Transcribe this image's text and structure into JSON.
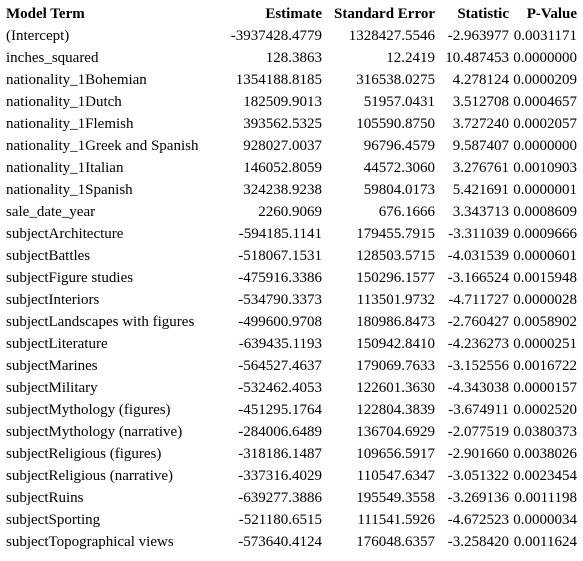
{
  "table": {
    "headers": {
      "term": "Model Term",
      "estimate": "Estimate",
      "std_error": "Standard Error",
      "statistic": "Statistic",
      "p_value": "P-Value"
    },
    "rows": [
      {
        "term": "(Intercept)",
        "estimate": "-3937428.4779",
        "std_error": "1328427.5546",
        "statistic": "-2.963977",
        "p_value": "0.0031171"
      },
      {
        "term": "inches_squared",
        "estimate": "128.3863",
        "std_error": "12.2419",
        "statistic": "10.487453",
        "p_value": "0.0000000"
      },
      {
        "term": "nationality_1Bohemian",
        "estimate": "1354188.8185",
        "std_error": "316538.0275",
        "statistic": "4.278124",
        "p_value": "0.0000209"
      },
      {
        "term": "nationality_1Dutch",
        "estimate": "182509.9013",
        "std_error": "51957.0431",
        "statistic": "3.512708",
        "p_value": "0.0004657"
      },
      {
        "term": "nationality_1Flemish",
        "estimate": "393562.5325",
        "std_error": "105590.8750",
        "statistic": "3.727240",
        "p_value": "0.0002057"
      },
      {
        "term": "nationality_1Greek and Spanish",
        "estimate": "928027.0037",
        "std_error": "96796.4579",
        "statistic": "9.587407",
        "p_value": "0.0000000"
      },
      {
        "term": "nationality_1Italian",
        "estimate": "146052.8059",
        "std_error": "44572.3060",
        "statistic": "3.276761",
        "p_value": "0.0010903"
      },
      {
        "term": "nationality_1Spanish",
        "estimate": "324238.9238",
        "std_error": "59804.0173",
        "statistic": "5.421691",
        "p_value": "0.0000001"
      },
      {
        "term": "sale_date_year",
        "estimate": "2260.9069",
        "std_error": "676.1666",
        "statistic": "3.343713",
        "p_value": "0.0008609"
      },
      {
        "term": "subjectArchitecture",
        "estimate": "-594185.1141",
        "std_error": "179455.7915",
        "statistic": "-3.311039",
        "p_value": "0.0009666"
      },
      {
        "term": "subjectBattles",
        "estimate": "-518067.1531",
        "std_error": "128503.5715",
        "statistic": "-4.031539",
        "p_value": "0.0000601"
      },
      {
        "term": "subjectFigure studies",
        "estimate": "-475916.3386",
        "std_error": "150296.1577",
        "statistic": "-3.166524",
        "p_value": "0.0015948"
      },
      {
        "term": "subjectInteriors",
        "estimate": "-534790.3373",
        "std_error": "113501.9732",
        "statistic": "-4.711727",
        "p_value": "0.0000028"
      },
      {
        "term": "subjectLandscapes with figures",
        "estimate": "-499600.9708",
        "std_error": "180986.8473",
        "statistic": "-2.760427",
        "p_value": "0.0058902"
      },
      {
        "term": "subjectLiterature",
        "estimate": "-639435.1193",
        "std_error": "150942.8410",
        "statistic": "-4.236273",
        "p_value": "0.0000251"
      },
      {
        "term": "subjectMarines",
        "estimate": "-564527.4637",
        "std_error": "179069.7633",
        "statistic": "-3.152556",
        "p_value": "0.0016722"
      },
      {
        "term": "subjectMilitary",
        "estimate": "-532462.4053",
        "std_error": "122601.3630",
        "statistic": "-4.343038",
        "p_value": "0.0000157"
      },
      {
        "term": "subjectMythology (figures)",
        "estimate": "-451295.1764",
        "std_error": "122804.3839",
        "statistic": "-3.674911",
        "p_value": "0.0002520"
      },
      {
        "term": "subjectMythology (narrative)",
        "estimate": "-284006.6489",
        "std_error": "136704.6929",
        "statistic": "-2.077519",
        "p_value": "0.0380373"
      },
      {
        "term": "subjectReligious (figures)",
        "estimate": "-318186.1487",
        "std_error": "109656.5917",
        "statistic": "-2.901660",
        "p_value": "0.0038026"
      },
      {
        "term": "subjectReligious (narrative)",
        "estimate": "-337316.4029",
        "std_error": "110547.6347",
        "statistic": "-3.051322",
        "p_value": "0.0023454"
      },
      {
        "term": "subjectRuins",
        "estimate": "-639277.3886",
        "std_error": "195549.3558",
        "statistic": "-3.269136",
        "p_value": "0.0011198"
      },
      {
        "term": "subjectSporting",
        "estimate": "-521180.6515",
        "std_error": "111541.5926",
        "statistic": "-4.672523",
        "p_value": "0.0000034"
      },
      {
        "term": "subjectTopographical views",
        "estimate": "-573640.4124",
        "std_error": "176048.6357",
        "statistic": "-3.258420",
        "p_value": "0.0011624"
      }
    ]
  }
}
